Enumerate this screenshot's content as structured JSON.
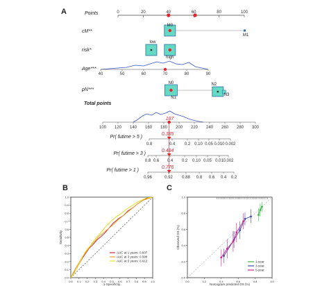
{
  "panels": {
    "A": "A",
    "B": "B",
    "C": "C"
  },
  "chart_data": [
    {
      "type": "nomogram",
      "panel": "A",
      "scale_ticks": {
        "points": [
          0,
          20,
          40,
          60,
          80,
          100
        ],
        "age": [
          40,
          50,
          60,
          70,
          80,
          90
        ],
        "total_points": [
          100,
          120,
          140,
          160,
          180,
          200,
          220,
          240,
          260,
          280,
          300
        ]
      },
      "variables": [
        {
          "name": "Points",
          "kind": "axis"
        },
        {
          "name": "cM**",
          "levels": [
            {
              "label": "M0",
              "points": 40
            },
            {
              "label": "M1",
              "points": 100
            }
          ]
        },
        {
          "name": "risk*",
          "levels": [
            {
              "label": "low",
              "points": 28
            },
            {
              "label": "high",
              "points": 40
            }
          ]
        },
        {
          "name": "Age***",
          "range": [
            40,
            90
          ]
        },
        {
          "name": "pN***",
          "levels": [
            {
              "label": "N0",
              "points": 40
            },
            {
              "label": "N1",
              "points": 44
            },
            {
              "label": "N2",
              "points": 78
            },
            {
              "label": "N3",
              "points": 84
            }
          ]
        }
      ],
      "total_points_label": "Total points",
      "total_points_value": "187",
      "survival_axes": [
        {
          "label": "Pr( futime > 5 )",
          "ticks": [
            "0.8",
            "0.4",
            "0.2",
            "0.10",
            "0.05",
            "0.010",
            "0.002"
          ],
          "predicted": "0.385"
        },
        {
          "label": "Pr( futime > 3 )",
          "ticks": [
            "0.8",
            "0.6",
            "0.4",
            "0.2",
            "0.10",
            "0.05",
            "0.01",
            "0.002"
          ],
          "predicted": "0.484"
        },
        {
          "label": "Pr( futime > 1 )",
          "ticks": [
            "0.96",
            "0.92",
            "0.88",
            "0.8",
            "0.6",
            "0.4",
            "0.2"
          ],
          "predicted": "0.776"
        }
      ],
      "colors": {
        "marker": "#e8202a",
        "box_fill": "#66d9c5",
        "box_edge": "#2e6fa8",
        "density": "#3355cc"
      }
    },
    {
      "type": "line",
      "panel": "B",
      "xlabel": "1-Specificity",
      "ylabel": "Sensitivity",
      "xlim": [
        0,
        1
      ],
      "ylim": [
        0,
        1
      ],
      "ticks": [
        "0.0",
        "0.1",
        "0.2",
        "0.3",
        "0.4",
        "0.5",
        "0.6",
        "0.7",
        "0.8",
        "0.9",
        "1.0"
      ],
      "legend_position": "bottom-right",
      "series": [
        {
          "name": "AUC at 1 years: 0.607",
          "color": "#cc2a3a",
          "points": [
            [
              0,
              0
            ],
            [
              0.03,
              0.05
            ],
            [
              0.06,
              0.12
            ],
            [
              0.1,
              0.17
            ],
            [
              0.14,
              0.24
            ],
            [
              0.18,
              0.3
            ],
            [
              0.22,
              0.36
            ],
            [
              0.27,
              0.41
            ],
            [
              0.32,
              0.47
            ],
            [
              0.37,
              0.51
            ],
            [
              0.42,
              0.56
            ],
            [
              0.47,
              0.62
            ],
            [
              0.52,
              0.68
            ],
            [
              0.58,
              0.73
            ],
            [
              0.64,
              0.77
            ],
            [
              0.7,
              0.83
            ],
            [
              0.76,
              0.87
            ],
            [
              0.82,
              0.92
            ],
            [
              0.88,
              0.96
            ],
            [
              0.94,
              0.99
            ],
            [
              1,
              1
            ]
          ]
        },
        {
          "name": "AUC at 3 years: 0.598",
          "color": "#f0a030",
          "points": [
            [
              0,
              0
            ],
            [
              0.04,
              0.08
            ],
            [
              0.08,
              0.15
            ],
            [
              0.12,
              0.22
            ],
            [
              0.16,
              0.29
            ],
            [
              0.2,
              0.34
            ],
            [
              0.25,
              0.41
            ],
            [
              0.3,
              0.46
            ],
            [
              0.35,
              0.52
            ],
            [
              0.4,
              0.56
            ],
            [
              0.46,
              0.61
            ],
            [
              0.52,
              0.66
            ],
            [
              0.58,
              0.72
            ],
            [
              0.64,
              0.77
            ],
            [
              0.7,
              0.82
            ],
            [
              0.76,
              0.87
            ],
            [
              0.82,
              0.92
            ],
            [
              0.88,
              0.96
            ],
            [
              0.94,
              0.98
            ],
            [
              1,
              1
            ]
          ]
        },
        {
          "name": "AUC at 5 years: 0.612",
          "color": "#e8e020",
          "points": [
            [
              0,
              0
            ],
            [
              0.03,
              0.04
            ],
            [
              0.07,
              0.11
            ],
            [
              0.11,
              0.19
            ],
            [
              0.15,
              0.27
            ],
            [
              0.19,
              0.34
            ],
            [
              0.24,
              0.4
            ],
            [
              0.29,
              0.47
            ],
            [
              0.34,
              0.53
            ],
            [
              0.39,
              0.59
            ],
            [
              0.44,
              0.65
            ],
            [
              0.5,
              0.71
            ],
            [
              0.56,
              0.76
            ],
            [
              0.62,
              0.8
            ],
            [
              0.68,
              0.85
            ],
            [
              0.74,
              0.89
            ],
            [
              0.8,
              0.93
            ],
            [
              0.86,
              0.96
            ],
            [
              0.92,
              0.99
            ],
            [
              1,
              1
            ]
          ]
        }
      ]
    },
    {
      "type": "scatter",
      "panel": "C",
      "xlabel": "Nomogram predicted OS (%)",
      "ylabel": "Observed OS (%)",
      "xlim": [
        0,
        1
      ],
      "ylim": [
        0,
        1
      ],
      "ticks": [
        "0.0",
        "0.2",
        "0.4",
        "0.6",
        "0.8",
        "1.0"
      ],
      "legend_position": "bottom-right",
      "series": [
        {
          "name": "1-year",
          "color": "#3ab54a",
          "points": [
            [
              0.84,
              0.78,
              0.7,
              0.86
            ],
            [
              0.86,
              0.84,
              0.76,
              0.92
            ],
            [
              0.88,
              0.88,
              0.82,
              0.94
            ]
          ]
        },
        {
          "name": "3-year",
          "color": "#3b4db0",
          "points": [
            [
              0.43,
              0.27,
              0.18,
              0.36
            ],
            [
              0.55,
              0.47,
              0.37,
              0.58
            ],
            [
              0.62,
              0.59,
              0.48,
              0.7
            ],
            [
              0.68,
              0.73,
              0.65,
              0.81
            ],
            [
              0.75,
              0.76,
              0.68,
              0.85
            ]
          ]
        },
        {
          "name": "5-year",
          "color": "#e0208a",
          "points": [
            [
              0.4,
              0.25,
              0.14,
              0.35
            ],
            [
              0.47,
              0.36,
              0.24,
              0.48
            ],
            [
              0.54,
              0.45,
              0.32,
              0.58
            ],
            [
              0.58,
              0.56,
              0.44,
              0.68
            ],
            [
              0.66,
              0.7,
              0.6,
              0.8
            ]
          ]
        }
      ]
    }
  ]
}
